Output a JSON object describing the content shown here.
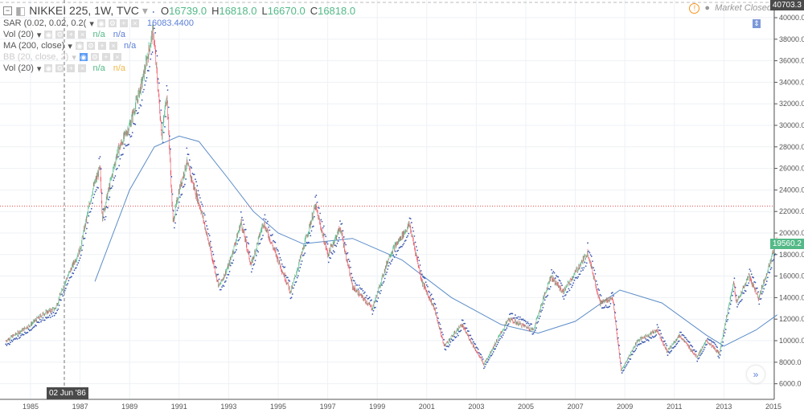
{
  "header": {
    "symbol": "NIKKEI 225, 1W, TVC",
    "open_label": "O",
    "open": "16739.0",
    "high_label": "H",
    "high": "16818.0",
    "low_label": "L",
    "low": "16670.0",
    "close_label": "C",
    "close": "16818.0",
    "market_status": "Market Closed"
  },
  "indicators": [
    {
      "name": "SAR (0.02, 0.02, 0.2(",
      "values": [
        "16083.4400"
      ]
    },
    {
      "name": "Vol (20)",
      "values": [
        "n/a",
        "n/a"
      ]
    },
    {
      "name": "MA (200, close)",
      "values": [
        "n/a"
      ]
    },
    {
      "name": "BB (20, close, 2)",
      "values": []
    },
    {
      "name": "Vol (20)",
      "values": [
        "n/a",
        "n/a"
      ]
    }
  ],
  "crosshair": {
    "date_label": "02 Jun '86",
    "price_label": "40703.3"
  },
  "last_price_label": "19560.2",
  "colors": {
    "up": "#53b987",
    "down": "#eb4d5c",
    "ma": "#5b8cc7",
    "sar": "#3c5ab0",
    "hline": "#e05050"
  },
  "chart_data": {
    "type": "candlestick",
    "title": "NIKKEI 225, 1W, TVC",
    "ylim": [
      6000,
      40000
    ],
    "xlim": [
      1984.0,
      2015.2
    ],
    "y_ticks": [
      6000,
      8000,
      10000,
      12000,
      14000,
      16000,
      18000,
      20000,
      22000,
      24000,
      26000,
      28000,
      30000,
      32000,
      34000,
      36000,
      38000,
      40000
    ],
    "x_ticks": [
      "1985",
      "1987",
      "1989",
      "1991",
      "1993",
      "1995",
      "1997",
      "1999",
      "2001",
      "2003",
      "2005",
      "2007",
      "2009",
      "2011",
      "2013",
      "2015"
    ],
    "horizontal_line": 22500,
    "price_path": [
      [
        1984.0,
        10000
      ],
      [
        1985.0,
        11500
      ],
      [
        1985.5,
        12500
      ],
      [
        1986.0,
        13000
      ],
      [
        1986.4,
        15500
      ],
      [
        1986.8,
        17500
      ],
      [
        1987.0,
        18500
      ],
      [
        1987.5,
        24000
      ],
      [
        1987.8,
        26000
      ],
      [
        1987.9,
        21500
      ],
      [
        1988.5,
        27500
      ],
      [
        1989.0,
        30000
      ],
      [
        1989.5,
        34000
      ],
      [
        1989.95,
        38900
      ],
      [
        1990.3,
        29000
      ],
      [
        1990.5,
        33000
      ],
      [
        1990.75,
        21000
      ],
      [
        1991.0,
        24000
      ],
      [
        1991.3,
        26500
      ],
      [
        1991.9,
        22000
      ],
      [
        1992.6,
        15000
      ],
      [
        1993.0,
        17000
      ],
      [
        1993.5,
        21000
      ],
      [
        1993.9,
        17000
      ],
      [
        1994.4,
        21000
      ],
      [
        1995.5,
        14500
      ],
      [
        1996.5,
        22500
      ],
      [
        1997.0,
        18000
      ],
      [
        1997.5,
        20500
      ],
      [
        1998.0,
        15000
      ],
      [
        1998.8,
        13000
      ],
      [
        1999.5,
        18000
      ],
      [
        2000.3,
        20800
      ],
      [
        2000.8,
        15500
      ],
      [
        2001.3,
        13000
      ],
      [
        2001.7,
        9500
      ],
      [
        2002.4,
        11500
      ],
      [
        2003.3,
        7800
      ],
      [
        2004.3,
        12000
      ],
      [
        2005.3,
        11000
      ],
      [
        2006.0,
        16000
      ],
      [
        2006.5,
        14500
      ],
      [
        2007.5,
        18200
      ],
      [
        2008.0,
        13500
      ],
      [
        2008.5,
        14000
      ],
      [
        2008.85,
        7200
      ],
      [
        2009.5,
        10000
      ],
      [
        2010.3,
        11000
      ],
      [
        2010.7,
        9000
      ],
      [
        2011.2,
        10500
      ],
      [
        2011.9,
        8500
      ],
      [
        2012.3,
        10000
      ],
      [
        2012.8,
        8800
      ],
      [
        2013.4,
        15500
      ],
      [
        2013.5,
        13500
      ],
      [
        2014.0,
        16000
      ],
      [
        2014.4,
        14000
      ],
      [
        2014.9,
        17500
      ],
      [
        2015.15,
        19560
      ]
    ],
    "ma200": [
      [
        1987.6,
        15500
      ],
      [
        1989.0,
        24000
      ],
      [
        1990.0,
        28000
      ],
      [
        1991.0,
        29000
      ],
      [
        1991.8,
        28500
      ],
      [
        1993.0,
        25000
      ],
      [
        1994.0,
        22000
      ],
      [
        1995.0,
        20000
      ],
      [
        1996.0,
        19000
      ],
      [
        1998.0,
        19500
      ],
      [
        2000.0,
        17500
      ],
      [
        2002.0,
        14000
      ],
      [
        2004.0,
        11500
      ],
      [
        2005.5,
        10700
      ],
      [
        2007.0,
        11800
      ],
      [
        2008.8,
        14700
      ],
      [
        2010.5,
        13500
      ],
      [
        2012.3,
        10500
      ],
      [
        2013.0,
        9500
      ],
      [
        2014.3,
        11000
      ],
      [
        2015.15,
        12400
      ]
    ]
  }
}
